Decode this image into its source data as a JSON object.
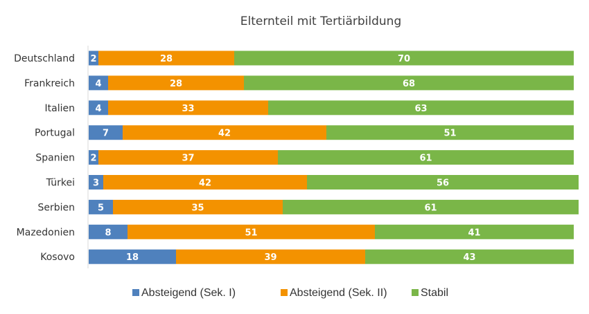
{
  "chart_data": {
    "type": "bar",
    "orientation": "horizontal",
    "stacked": true,
    "title": "Elternteil mit Tertiärbildung",
    "xlim": [
      0,
      100
    ],
    "grid": false,
    "legend_position": "bottom",
    "categories": [
      "Deutschland",
      "Frankreich",
      "Italien",
      "Portugal",
      "Spanien",
      "Türkei",
      "Serbien",
      "Mazedonien",
      "Kosovo"
    ],
    "series": [
      {
        "name": "Absteigend (Sek. I)",
        "color": "#4f81bd",
        "values": [
          2,
          4,
          4,
          7,
          2,
          3,
          5,
          8,
          18
        ]
      },
      {
        "name": "Absteigend (Sek. II)",
        "color": "#f39200",
        "values": [
          28,
          28,
          33,
          42,
          37,
          42,
          35,
          51,
          39
        ]
      },
      {
        "name": "Stabil",
        "color": "#7ab648",
        "values": [
          70,
          68,
          63,
          51,
          61,
          56,
          61,
          41,
          43
        ]
      }
    ]
  }
}
